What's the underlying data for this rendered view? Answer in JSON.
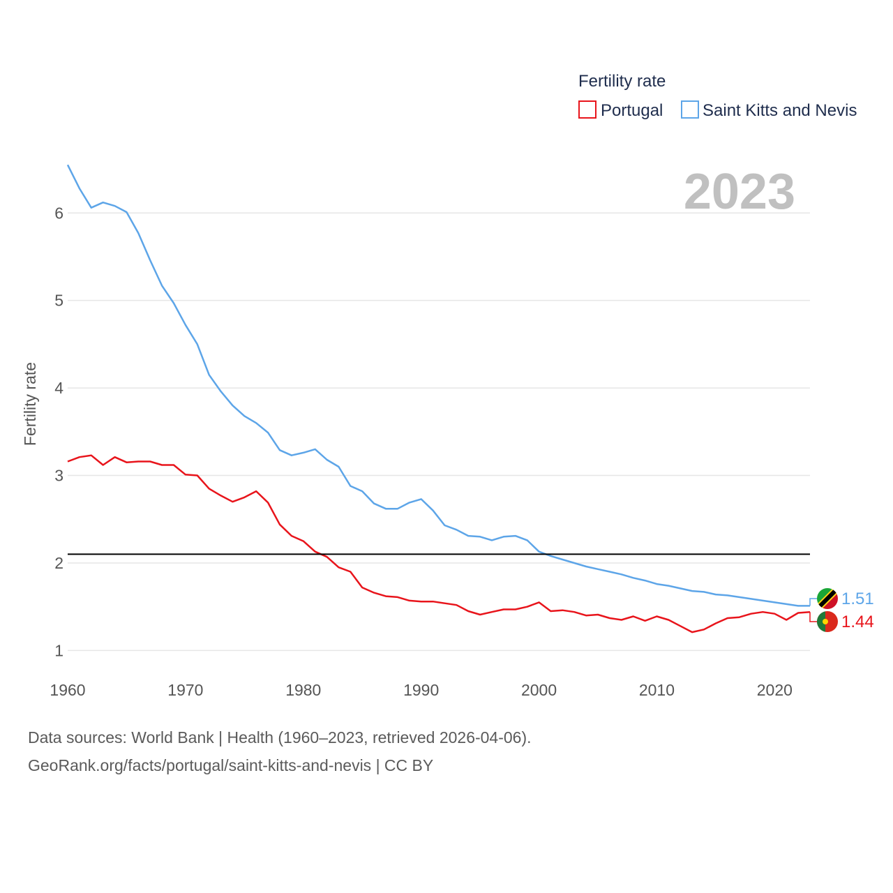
{
  "colors": {
    "portugal": "#e8141b",
    "saint_kitts": "#5da5e8",
    "reference_line": "#000000",
    "grid": "#e6e6e6"
  },
  "chart_data": {
    "type": "line",
    "ylabel": "Fertility rate",
    "xlabel": "",
    "ylim": [
      0.78,
      6.6
    ],
    "xlim": [
      1960,
      2023
    ],
    "y_ticks": [
      1,
      2,
      3,
      4,
      5,
      6
    ],
    "x_ticks": [
      1960,
      1970,
      1980,
      1990,
      2000,
      2010,
      2020
    ],
    "legend": {
      "title": "Fertility rate",
      "placement": "top-right"
    },
    "year_label": "2023",
    "reference_line": {
      "y": 2.1
    },
    "x": [
      1960,
      1961,
      1962,
      1963,
      1964,
      1965,
      1966,
      1967,
      1968,
      1969,
      1970,
      1971,
      1972,
      1973,
      1974,
      1975,
      1976,
      1977,
      1978,
      1979,
      1980,
      1981,
      1982,
      1983,
      1984,
      1985,
      1986,
      1987,
      1988,
      1989,
      1990,
      1991,
      1992,
      1993,
      1994,
      1995,
      1996,
      1997,
      1998,
      1999,
      2000,
      2001,
      2002,
      2003,
      2004,
      2005,
      2006,
      2007,
      2008,
      2009,
      2010,
      2011,
      2012,
      2013,
      2014,
      2015,
      2016,
      2017,
      2018,
      2019,
      2020,
      2021,
      2022,
      2023
    ],
    "series": [
      {
        "name": "Portugal",
        "end_label": "1.44",
        "values": [
          3.16,
          3.21,
          3.23,
          3.12,
          3.21,
          3.15,
          3.16,
          3.16,
          3.12,
          3.12,
          3.01,
          3.0,
          2.85,
          2.77,
          2.7,
          2.75,
          2.82,
          2.69,
          2.44,
          2.31,
          2.25,
          2.13,
          2.07,
          1.95,
          1.9,
          1.72,
          1.66,
          1.62,
          1.61,
          1.57,
          1.56,
          1.56,
          1.54,
          1.52,
          1.45,
          1.41,
          1.44,
          1.47,
          1.47,
          1.5,
          1.55,
          1.45,
          1.46,
          1.44,
          1.4,
          1.41,
          1.37,
          1.35,
          1.39,
          1.34,
          1.39,
          1.35,
          1.28,
          1.21,
          1.24,
          1.31,
          1.37,
          1.38,
          1.42,
          1.44,
          1.42,
          1.35,
          1.43,
          1.44
        ]
      },
      {
        "name": "Saint Kitts and Nevis",
        "end_label": "1.51",
        "values": [
          6.55,
          6.28,
          6.06,
          6.12,
          6.08,
          6.01,
          5.77,
          5.46,
          5.17,
          4.97,
          4.72,
          4.5,
          4.15,
          3.96,
          3.8,
          3.68,
          3.6,
          3.49,
          3.29,
          3.23,
          3.26,
          3.3,
          3.18,
          3.1,
          2.88,
          2.82,
          2.68,
          2.62,
          2.62,
          2.69,
          2.73,
          2.6,
          2.43,
          2.38,
          2.31,
          2.3,
          2.26,
          2.3,
          2.31,
          2.26,
          2.13,
          2.08,
          2.04,
          2.0,
          1.96,
          1.93,
          1.9,
          1.87,
          1.83,
          1.8,
          1.76,
          1.74,
          1.71,
          1.68,
          1.67,
          1.64,
          1.63,
          1.61,
          1.59,
          1.57,
          1.55,
          1.53,
          1.51,
          1.51
        ]
      }
    ]
  },
  "footer": {
    "line1": "Data sources: World Bank | Health (1960–2023, retrieved 2026-04-06).",
    "line2": "GeoRank.org/facts/portugal/saint-kitts-and-nevis | CC BY"
  }
}
